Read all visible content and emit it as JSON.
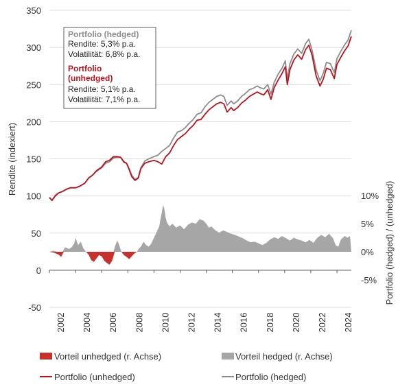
{
  "colors": {
    "hedged": "#8c8c8c",
    "unhedged": "#c0111a",
    "hedged_area": "#a6a6a6",
    "unhedged_area": "#c9302c",
    "grid": "#dcdcdc"
  },
  "chart_data": {
    "type": "line",
    "left_axis": {
      "label": "Rendite (indexiert)",
      "ylim": [
        -50,
        350
      ],
      "ticks": [
        "350",
        "300",
        "250",
        "200",
        "150",
        "100",
        "50",
        "0",
        "-50"
      ]
    },
    "right_axis": {
      "label": "Portfolio (hedged) / (unhedged)",
      "ylim": [
        -5,
        10
      ],
      "ticks": [
        "10%",
        "5%",
        "0%",
        "-5%"
      ]
    },
    "x_axis": {
      "xlim": [
        2002,
        2025.1
      ],
      "ticks": [
        "2002",
        "2004",
        "2006",
        "2008",
        "2010",
        "2012",
        "2014",
        "2016",
        "2018",
        "2020",
        "2022",
        "2024"
      ]
    },
    "grid": "horizontal",
    "legend_position": "bottom",
    "legend": {
      "unhedged_area": "Vorteil unhedged (r. Achse)",
      "hedged_area": "Vorteil hedged (r. Achse)",
      "unhedged_line": "Portfolio (unhedged)",
      "hedged_line": "Portfolio (hedged)"
    },
    "annotation": {
      "hedged_title": "Portfolio (hedged)",
      "hedged_rendite": "Rendite: 5,3% p.a.",
      "hedged_vol": "Volatilität: 6,8% p.a.",
      "unhedged_title_1": "Portfolio",
      "unhedged_title_2": "(unhedged)",
      "unhedged_rendite": "Rendite: 5,1% p.a.",
      "unhedged_vol": "Volatilität: 7,1% p.a."
    },
    "series": [
      {
        "name": "Portfolio (hedged)",
        "axis": "left",
        "points": [
          [
            2002.0,
            98
          ],
          [
            2002.2,
            94
          ],
          [
            2002.45,
            101
          ],
          [
            2002.7,
            104
          ],
          [
            2003.0,
            106
          ],
          [
            2003.3,
            109
          ],
          [
            2003.6,
            111
          ],
          [
            2004.0,
            111
          ],
          [
            2004.3,
            113
          ],
          [
            2004.7,
            117
          ],
          [
            2005.0,
            124
          ],
          [
            2005.3,
            128
          ],
          [
            2005.6,
            133
          ],
          [
            2006.0,
            138
          ],
          [
            2006.3,
            144
          ],
          [
            2006.6,
            146
          ],
          [
            2006.9,
            151
          ],
          [
            2007.2,
            152
          ],
          [
            2007.45,
            152
          ],
          [
            2007.7,
            145
          ],
          [
            2007.9,
            144
          ],
          [
            2008.05,
            139
          ],
          [
            2008.3,
            128
          ],
          [
            2008.55,
            122
          ],
          [
            2008.8,
            125
          ],
          [
            2009.0,
            138
          ],
          [
            2009.3,
            147
          ],
          [
            2009.6,
            150
          ],
          [
            2010.0,
            153
          ],
          [
            2010.3,
            155
          ],
          [
            2010.6,
            160
          ],
          [
            2010.9,
            164
          ],
          [
            2011.2,
            168
          ],
          [
            2011.5,
            178
          ],
          [
            2011.8,
            186
          ],
          [
            2012.1,
            188
          ],
          [
            2012.4,
            192
          ],
          [
            2012.7,
            198
          ],
          [
            2013.0,
            203
          ],
          [
            2013.3,
            210
          ],
          [
            2013.6,
            212
          ],
          [
            2013.9,
            220
          ],
          [
            2014.2,
            226
          ],
          [
            2014.5,
            230
          ],
          [
            2014.8,
            234
          ],
          [
            2015.1,
            236
          ],
          [
            2015.35,
            234
          ],
          [
            2015.6,
            222
          ],
          [
            2015.9,
            228
          ],
          [
            2016.1,
            224
          ],
          [
            2016.4,
            228
          ],
          [
            2016.7,
            234
          ],
          [
            2017.0,
            238
          ],
          [
            2017.3,
            243
          ],
          [
            2017.6,
            245
          ],
          [
            2017.9,
            248
          ],
          [
            2018.1,
            246
          ],
          [
            2018.4,
            244
          ],
          [
            2018.7,
            250
          ],
          [
            2018.95,
            237
          ],
          [
            2019.2,
            253
          ],
          [
            2019.5,
            264
          ],
          [
            2019.8,
            272
          ],
          [
            2020.05,
            282
          ],
          [
            2020.2,
            258
          ],
          [
            2020.4,
            278
          ],
          [
            2020.7,
            291
          ],
          [
            2021.0,
            298
          ],
          [
            2021.3,
            292
          ],
          [
            2021.6,
            305
          ],
          [
            2021.85,
            311
          ],
          [
            2022.1,
            296
          ],
          [
            2022.4,
            270
          ],
          [
            2022.7,
            255
          ],
          [
            2022.95,
            265
          ],
          [
            2023.2,
            280
          ],
          [
            2023.5,
            278
          ],
          [
            2023.8,
            266
          ],
          [
            2024.0,
            285
          ],
          [
            2024.3,
            295
          ],
          [
            2024.6,
            304
          ],
          [
            2024.85,
            310
          ],
          [
            2025.1,
            323
          ]
        ]
      },
      {
        "name": "Portfolio (unhedged)",
        "axis": "left",
        "points": [
          [
            2002.0,
            98
          ],
          [
            2002.2,
            94
          ],
          [
            2002.45,
            100
          ],
          [
            2002.7,
            104
          ],
          [
            2003.0,
            106
          ],
          [
            2003.3,
            109
          ],
          [
            2003.6,
            111
          ],
          [
            2004.0,
            111
          ],
          [
            2004.3,
            113
          ],
          [
            2004.7,
            117
          ],
          [
            2005.0,
            124
          ],
          [
            2005.3,
            128
          ],
          [
            2005.6,
            134
          ],
          [
            2006.0,
            139
          ],
          [
            2006.3,
            146
          ],
          [
            2006.6,
            148
          ],
          [
            2006.9,
            153
          ],
          [
            2007.2,
            153
          ],
          [
            2007.45,
            152
          ],
          [
            2007.7,
            146
          ],
          [
            2007.9,
            144
          ],
          [
            2008.05,
            138
          ],
          [
            2008.3,
            126
          ],
          [
            2008.55,
            121
          ],
          [
            2008.8,
            124
          ],
          [
            2009.0,
            137
          ],
          [
            2009.3,
            144
          ],
          [
            2009.6,
            146
          ],
          [
            2010.0,
            148
          ],
          [
            2010.3,
            146
          ],
          [
            2010.6,
            143
          ],
          [
            2010.9,
            153
          ],
          [
            2011.2,
            158
          ],
          [
            2011.5,
            168
          ],
          [
            2011.8,
            176
          ],
          [
            2012.1,
            180
          ],
          [
            2012.4,
            184
          ],
          [
            2012.7,
            190
          ],
          [
            2013.0,
            195
          ],
          [
            2013.3,
            202
          ],
          [
            2013.6,
            203
          ],
          [
            2013.9,
            210
          ],
          [
            2014.2,
            216
          ],
          [
            2014.5,
            220
          ],
          [
            2014.8,
            224
          ],
          [
            2015.1,
            226
          ],
          [
            2015.35,
            224
          ],
          [
            2015.6,
            213
          ],
          [
            2015.9,
            219
          ],
          [
            2016.1,
            215
          ],
          [
            2016.4,
            219
          ],
          [
            2016.7,
            225
          ],
          [
            2017.0,
            229
          ],
          [
            2017.3,
            234
          ],
          [
            2017.6,
            237
          ],
          [
            2017.9,
            240
          ],
          [
            2018.1,
            238
          ],
          [
            2018.4,
            236
          ],
          [
            2018.7,
            243
          ],
          [
            2018.95,
            230
          ],
          [
            2019.2,
            246
          ],
          [
            2019.5,
            256
          ],
          [
            2019.8,
            265
          ],
          [
            2020.05,
            274
          ],
          [
            2020.2,
            250
          ],
          [
            2020.4,
            270
          ],
          [
            2020.7,
            283
          ],
          [
            2021.0,
            290
          ],
          [
            2021.3,
            284
          ],
          [
            2021.6,
            297
          ],
          [
            2021.85,
            303
          ],
          [
            2022.1,
            289
          ],
          [
            2022.4,
            262
          ],
          [
            2022.7,
            248
          ],
          [
            2022.95,
            257
          ],
          [
            2023.2,
            272
          ],
          [
            2023.5,
            270
          ],
          [
            2023.8,
            258
          ],
          [
            2024.0,
            277
          ],
          [
            2024.3,
            287
          ],
          [
            2024.6,
            296
          ],
          [
            2024.85,
            302
          ],
          [
            2025.1,
            315
          ]
        ]
      },
      {
        "name": "Vorteil hedged (r. Achse)",
        "axis": "right",
        "points": [
          [
            2002.0,
            0
          ],
          [
            2002.3,
            0.2
          ],
          [
            2002.6,
            0
          ],
          [
            2003.0,
            0
          ],
          [
            2003.2,
            0.8
          ],
          [
            2003.5,
            0.5
          ],
          [
            2003.7,
            0.8
          ],
          [
            2003.9,
            1.5
          ],
          [
            2004.0,
            2.5
          ],
          [
            2004.2,
            1.2
          ],
          [
            2004.4,
            1.8
          ],
          [
            2004.6,
            0.6
          ],
          [
            2004.8,
            0
          ],
          [
            2006.9,
            0
          ],
          [
            2007.05,
            1.2
          ],
          [
            2007.2,
            2
          ],
          [
            2007.35,
            1.1
          ],
          [
            2007.5,
            0
          ],
          [
            2008.7,
            0
          ],
          [
            2008.85,
            0.6
          ],
          [
            2009.0,
            0.9
          ],
          [
            2009.2,
            1.8
          ],
          [
            2009.4,
            1.2
          ],
          [
            2009.6,
            0.9
          ],
          [
            2009.8,
            1.5
          ],
          [
            2010.0,
            2.5
          ],
          [
            2010.2,
            3.5
          ],
          [
            2010.4,
            4.5
          ],
          [
            2010.5,
            5.8
          ],
          [
            2010.6,
            7
          ],
          [
            2010.7,
            8.3
          ],
          [
            2010.8,
            7.6
          ],
          [
            2010.9,
            6
          ],
          [
            2011.0,
            5.2
          ],
          [
            2011.2,
            4.5
          ],
          [
            2011.4,
            5
          ],
          [
            2011.7,
            4.3
          ],
          [
            2012.0,
            4.7
          ],
          [
            2012.3,
            4
          ],
          [
            2012.6,
            4.8
          ],
          [
            2012.9,
            5.2
          ],
          [
            2013.2,
            5
          ],
          [
            2013.5,
            5.8
          ],
          [
            2013.8,
            5.5
          ],
          [
            2014.0,
            5
          ],
          [
            2014.2,
            4.3
          ],
          [
            2014.4,
            4.5
          ],
          [
            2014.7,
            3.8
          ],
          [
            2015.0,
            3.4
          ],
          [
            2015.3,
            3.8
          ],
          [
            2015.6,
            3.5
          ],
          [
            2015.9,
            3.2
          ],
          [
            2016.2,
            3
          ],
          [
            2016.5,
            2.7
          ],
          [
            2016.8,
            2.4
          ],
          [
            2017.1,
            2
          ],
          [
            2017.4,
            1.7
          ],
          [
            2017.7,
            1.8
          ],
          [
            2018.0,
            1.5
          ],
          [
            2018.3,
            1.2
          ],
          [
            2018.6,
            1.6
          ],
          [
            2018.9,
            2.2
          ],
          [
            2019.2,
            2.6
          ],
          [
            2019.5,
            2.3
          ],
          [
            2019.8,
            2.8
          ],
          [
            2020.1,
            2.4
          ],
          [
            2020.4,
            2
          ],
          [
            2020.7,
            2.5
          ],
          [
            2021.0,
            2.2
          ],
          [
            2021.3,
            2
          ],
          [
            2021.6,
            1.7
          ],
          [
            2021.9,
            2.1
          ],
          [
            2022.2,
            1.6
          ],
          [
            2022.5,
            2.5
          ],
          [
            2022.8,
            3
          ],
          [
            2023.1,
            2.6
          ],
          [
            2023.4,
            3.2
          ],
          [
            2023.7,
            2.4
          ],
          [
            2023.9,
            1.2
          ],
          [
            2024.1,
            0.9
          ],
          [
            2024.3,
            2.2
          ],
          [
            2024.6,
            2.8
          ],
          [
            2024.8,
            2.5
          ],
          [
            2025.0,
            2.8
          ],
          [
            2025.1,
            0
          ]
        ]
      },
      {
        "name": "Vorteil unhedged (r. Achse)",
        "axis": "right",
        "points": [
          [
            2002.0,
            0
          ],
          [
            2002.4,
            -0.2
          ],
          [
            2002.7,
            -0.5
          ],
          [
            2002.9,
            -0.9
          ],
          [
            2003.1,
            0
          ],
          [
            2004.8,
            0
          ],
          [
            2005.0,
            -0.5
          ],
          [
            2005.2,
            -1.5
          ],
          [
            2005.4,
            -1.8
          ],
          [
            2005.6,
            -1.2
          ],
          [
            2005.8,
            -0.6
          ],
          [
            2006.0,
            -0.8
          ],
          [
            2006.2,
            -1.6
          ],
          [
            2006.4,
            -2
          ],
          [
            2006.6,
            -2.3
          ],
          [
            2006.8,
            -1.6
          ],
          [
            2006.9,
            -0.8
          ],
          [
            2007.0,
            0
          ],
          [
            2007.5,
            0
          ],
          [
            2007.7,
            -0.6
          ],
          [
            2007.9,
            -0.9
          ],
          [
            2008.1,
            -1.3
          ],
          [
            2008.3,
            -0.8
          ],
          [
            2008.5,
            -0.3
          ],
          [
            2008.7,
            0
          ]
        ]
      }
    ]
  }
}
